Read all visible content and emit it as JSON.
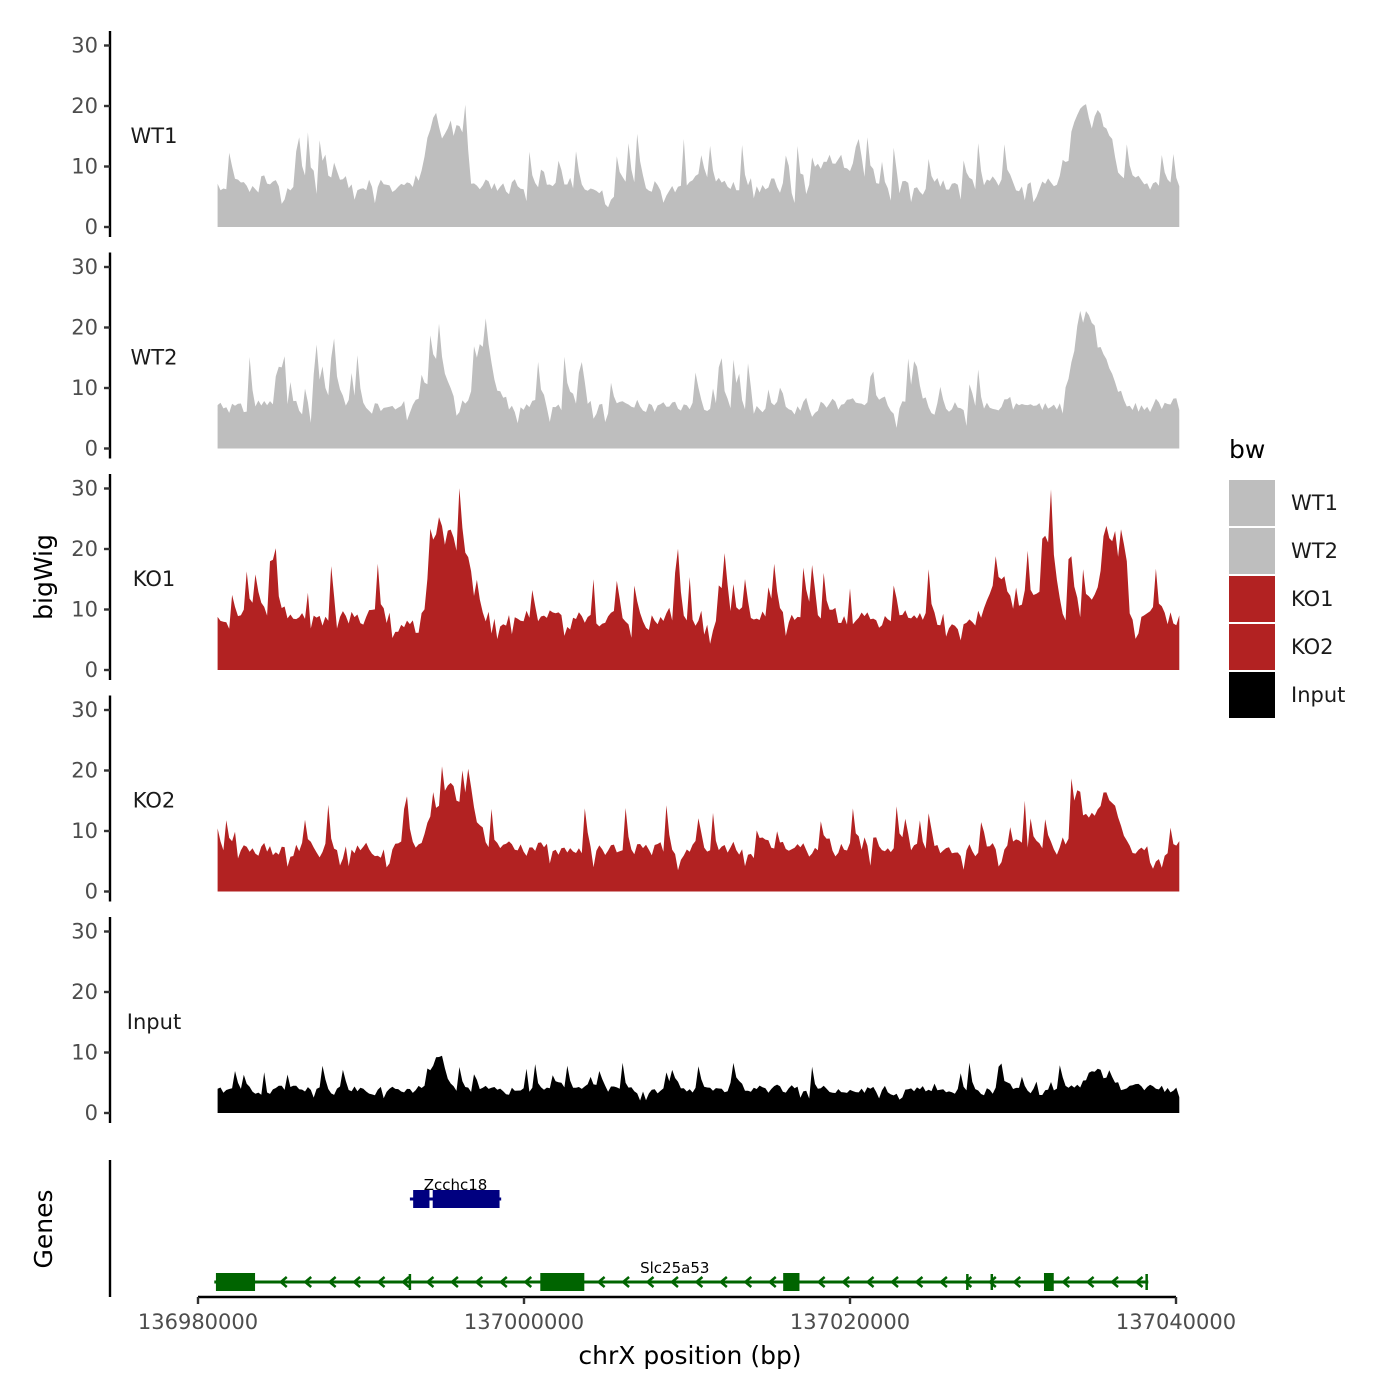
{
  "chart_data": {
    "type": "area",
    "title": "",
    "ylabel": "bigWig",
    "genes_ylabel": "Genes",
    "xlabel": "chrX position (bp)",
    "xlim": [
      136980000,
      137040000
    ],
    "ylim": [
      0,
      32
    ],
    "x_ticks": [
      {
        "value": 136980000,
        "label": "136980000"
      },
      {
        "value": 137000000,
        "label": "137000000"
      },
      {
        "value": 137020000,
        "label": "137020000"
      },
      {
        "value": 137040000,
        "label": "137040000"
      }
    ],
    "y_ticks": [
      {
        "value": 0,
        "label": "0"
      },
      {
        "value": 10,
        "label": "10"
      },
      {
        "value": 20,
        "label": "20"
      },
      {
        "value": 30,
        "label": "30"
      }
    ],
    "series": [
      {
        "name": "WT1",
        "color": "#BEBEBE",
        "seed": 11,
        "base": 9,
        "peaks": [
          [
            136994500,
            14,
            700
          ],
          [
            136995800,
            12,
            600
          ],
          [
            137034200,
            14,
            1000
          ],
          [
            137035500,
            9,
            800
          ],
          [
            137019000,
            5,
            1500
          ]
        ]
      },
      {
        "name": "WT2",
        "color": "#BEBEBE",
        "seed": 23,
        "base": 9,
        "peaks": [
          [
            136997500,
            11,
            700
          ],
          [
            136994500,
            8,
            800
          ],
          [
            137034200,
            16,
            800
          ],
          [
            137035500,
            10,
            900
          ]
        ]
      },
      {
        "name": "KO1",
        "color": "#B22222",
        "seed": 37,
        "base": 11,
        "peaks": [
          [
            136994500,
            16,
            900
          ],
          [
            136996000,
            14,
            800
          ],
          [
            137032000,
            14,
            500
          ],
          [
            137035800,
            16,
            700
          ],
          [
            137029000,
            8,
            800
          ]
        ]
      },
      {
        "name": "KO2",
        "color": "#B22222",
        "seed": 53,
        "base": 9,
        "peaks": [
          [
            136995000,
            13,
            900
          ],
          [
            136996500,
            10,
            700
          ],
          [
            137035800,
            12,
            700
          ],
          [
            137034000,
            8,
            800
          ]
        ]
      },
      {
        "name": "Input",
        "color": "#000000",
        "seed": 71,
        "base": 5,
        "peaks": [
          [
            136994700,
            7,
            500
          ],
          [
            137035000,
            4,
            800
          ]
        ]
      }
    ],
    "legend": {
      "title": "bw",
      "position": "right",
      "entries": [
        {
          "label": "WT1",
          "color": "#BEBEBE"
        },
        {
          "label": "WT2",
          "color": "#BEBEBE"
        },
        {
          "label": "KO1",
          "color": "#B22222"
        },
        {
          "label": "KO2",
          "color": "#B22222"
        },
        {
          "label": "Input",
          "color": "#000000"
        }
      ]
    },
    "genes": [
      {
        "name": "Zcchc18",
        "strand": "+",
        "color": "#000080",
        "start": 136993000,
        "end": 136998600,
        "exons": [
          [
            136993200,
            136994200
          ],
          [
            136994400,
            136998500
          ]
        ]
      },
      {
        "name": "Slc25a53",
        "strand": "-",
        "color": "#006400",
        "start": 136981000,
        "end": 137038300,
        "exons": [
          [
            136981100,
            136983500
          ],
          [
            137001000,
            137003700
          ],
          [
            137015900,
            137016900
          ],
          [
            137031900,
            137032500
          ]
        ],
        "marks": [
          136993000,
          137027200,
          137028700,
          137038200
        ]
      }
    ]
  }
}
